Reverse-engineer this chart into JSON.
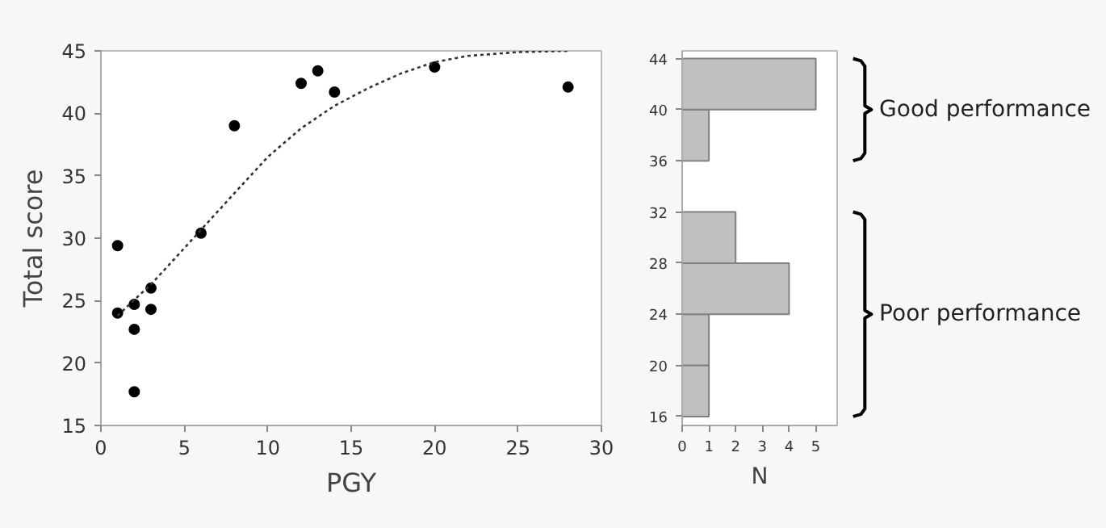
{
  "chart_data": [
    {
      "type": "scatter",
      "xlabel": "PGY",
      "ylabel": "Total score",
      "xlim": [
        0,
        30
      ],
      "ylim": [
        15,
        45
      ],
      "xticks": [
        0,
        5,
        10,
        15,
        20,
        25,
        30
      ],
      "yticks": [
        15,
        20,
        25,
        30,
        35,
        40,
        45
      ],
      "grid": false,
      "marker": "circle",
      "series": [
        {
          "color": "#000000",
          "x": [
            1,
            1,
            2,
            2,
            2,
            3,
            3,
            6,
            8,
            12,
            13,
            14,
            20,
            28
          ],
          "values": [
            29.4,
            24.0,
            24.7,
            22.7,
            17.7,
            26.0,
            24.3,
            30.4,
            39.0,
            42.4,
            43.4,
            41.7,
            43.7,
            42.1
          ]
        },
        {
          "type": "line",
          "color": "#333333",
          "line_style": "dotted",
          "marker": "none",
          "x": [
            1,
            3,
            5,
            8,
            10,
            12,
            14,
            16,
            18,
            20,
            22,
            25,
            28
          ],
          "values": [
            23.8,
            26.3,
            29.2,
            33.6,
            36.5,
            38.8,
            40.6,
            42.0,
            43.2,
            44.1,
            44.6,
            44.9,
            45.0
          ]
        }
      ]
    },
    {
      "type": "histogram",
      "orientation": "horizontal",
      "xlabel": "N",
      "bins": [
        16,
        20,
        24,
        28,
        32,
        36,
        40,
        44
      ],
      "values": [
        1,
        1,
        4,
        2,
        0,
        1,
        5
      ],
      "color": "#c0c0c0",
      "xlim": [
        0,
        5.8
      ],
      "ylim": [
        15.3,
        44.6
      ],
      "xticks": [
        0,
        1,
        2,
        3,
        4,
        5
      ],
      "yticks": [
        16,
        20,
        24,
        28,
        32,
        36,
        40,
        44
      ],
      "grid": false,
      "annotations": [
        "Good performance",
        "Poor performance"
      ]
    }
  ]
}
